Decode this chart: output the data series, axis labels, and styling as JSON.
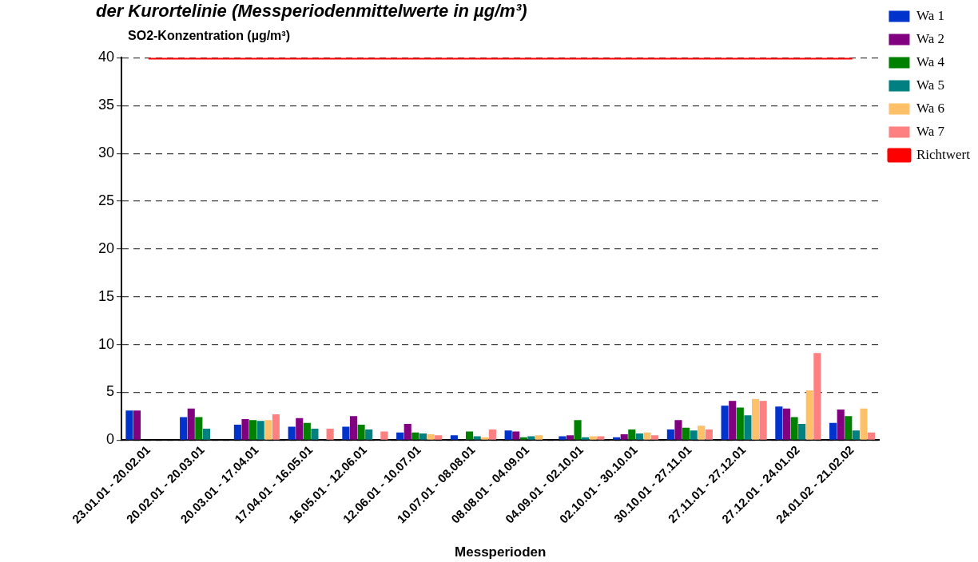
{
  "chart_data": {
    "type": "bar",
    "title": "der Kurortelinie (Messperiodenmittelwerte in µg/m³)",
    "ylabel": "SO2-Konzentration (µg/m³)",
    "xlabel": "Messperioden",
    "categories": [
      "23.01.01 - 20.02.01",
      "20.02.01 - 20.03.01",
      "20.03.01 - 17.04.01",
      "17.04.01 - 16.05.01",
      "16.05.01 - 12.06.01",
      "12.06.01 - 10.07.01",
      "10.07.01 - 08.08.01",
      "08.08.01 - 04.09.01",
      "04.09.01 - 02.10.01",
      "02.10.01 - 30.10.01",
      "30.10.01 - 27.11.01",
      "27.11.01 - 27.12.01",
      "27.12.01 - 24.01.02",
      "24.01.02 - 21.02.02"
    ],
    "series": [
      {
        "name": "Wa 1",
        "color": "#0033cc",
        "values": [
          3.1,
          2.4,
          1.6,
          1.4,
          1.4,
          0.8,
          0.5,
          1.0,
          0.4,
          0.3,
          1.1,
          3.6,
          3.5,
          1.8
        ]
      },
      {
        "name": "Wa 2",
        "color": "#800080",
        "values": [
          3.1,
          3.3,
          2.2,
          2.3,
          2.5,
          1.7,
          null,
          0.9,
          0.5,
          0.6,
          2.1,
          4.1,
          3.3,
          3.2
        ]
      },
      {
        "name": "Wa 4",
        "color": "#008000",
        "values": [
          null,
          2.4,
          2.1,
          1.8,
          1.6,
          0.8,
          0.9,
          0.3,
          2.1,
          1.1,
          1.3,
          3.4,
          2.4,
          2.5
        ]
      },
      {
        "name": "Wa 5",
        "color": "#008080",
        "values": [
          null,
          1.2,
          2.0,
          1.2,
          1.1,
          0.7,
          0.4,
          0.4,
          0.3,
          0.7,
          1.0,
          2.6,
          1.7,
          1.0
        ]
      },
      {
        "name": "Wa 6",
        "color": "#ffc06a",
        "values": [
          null,
          null,
          2.1,
          null,
          null,
          0.6,
          0.3,
          0.5,
          0.4,
          0.8,
          1.5,
          4.3,
          5.2,
          3.3
        ]
      },
      {
        "name": "Wa 7",
        "color": "#ff8080",
        "values": [
          null,
          null,
          2.7,
          1.2,
          0.9,
          0.5,
          1.1,
          null,
          0.4,
          0.5,
          1.1,
          4.1,
          9.1,
          0.8
        ]
      },
      {
        "name": "Richtwert",
        "type": "line",
        "color": "#ff0000",
        "marker": "none",
        "values": [
          40,
          40,
          40,
          40,
          40,
          40,
          40,
          40,
          40,
          40,
          40,
          40,
          40,
          40
        ]
      }
    ],
    "ylim": [
      0,
      40
    ],
    "yticks": [
      0,
      5,
      10,
      15,
      20,
      25,
      30,
      35,
      40
    ],
    "grid": "y",
    "legend": "top right"
  }
}
